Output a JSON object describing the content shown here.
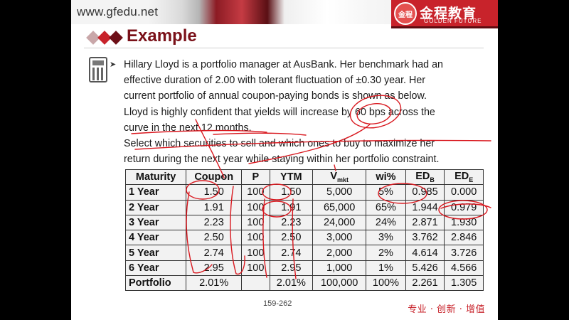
{
  "header": {
    "site_url": "www.gfedu.net",
    "logo_text_cn": "金程教育",
    "logo_text_en": "GOLDEN FUTURE",
    "seal_text": "金程"
  },
  "title": "Example",
  "body": {
    "paragraph1": [
      "Hillary Lloyd is a portfolio manager at AusBank. Her benchmark had an",
      "effective duration of 2.00 with tolerant fluctuation of ±0.30 year. Her",
      "current portfolio of annual coupon-paying bonds is shown as below.",
      "Lloyd is highly confident that yields will increase by 60 bps across the",
      "curve in the next 12 months."
    ],
    "paragraph2": [
      "Select which securities to sell and which ones to buy to maximize her",
      "return during the next year while staying within her portfolio constraint."
    ]
  },
  "table": {
    "headers": {
      "maturity": "Maturity",
      "coupon": "Coupon",
      "p": "P",
      "ytm": "YTM",
      "vmkt_main": "V",
      "vmkt_sub": "mkt",
      "wi": "wi%",
      "edb_main": "ED",
      "edb_sub": "B",
      "ede_main": "ED",
      "ede_sub": "E"
    },
    "rows": [
      [
        "1 Year",
        "1.50",
        "100",
        "1.50",
        "5,000",
        "5%",
        "0.985",
        "0.000"
      ],
      [
        "2 Year",
        "1.91",
        "100",
        "1.91",
        "65,000",
        "65%",
        "1.944",
        "0.979"
      ],
      [
        "3 Year",
        "2.23",
        "100",
        "2.23",
        "24,000",
        "24%",
        "2.871",
        "1.930"
      ],
      [
        "4 Year",
        "2.50",
        "100",
        "2.50",
        "3,000",
        "3%",
        "3.762",
        "2.846"
      ],
      [
        "5 Year",
        "2.74",
        "100",
        "2.74",
        "2,000",
        "2%",
        "4.614",
        "3.726"
      ],
      [
        "6 Year",
        "2.95",
        "100",
        "2.95",
        "1,000",
        "1%",
        "5.426",
        "4.566"
      ],
      [
        "Portfolio",
        "2.01%",
        "",
        "2.01%",
        "100,000",
        "100%",
        "2.261",
        "1.305"
      ]
    ]
  },
  "footer": {
    "page_number": "159-262",
    "slogan": "专业 · 创新 · 增值"
  },
  "colors": {
    "brand_red": "#c8232b",
    "title_maroon": "#7a1119",
    "ink_red": "#d9181f"
  }
}
